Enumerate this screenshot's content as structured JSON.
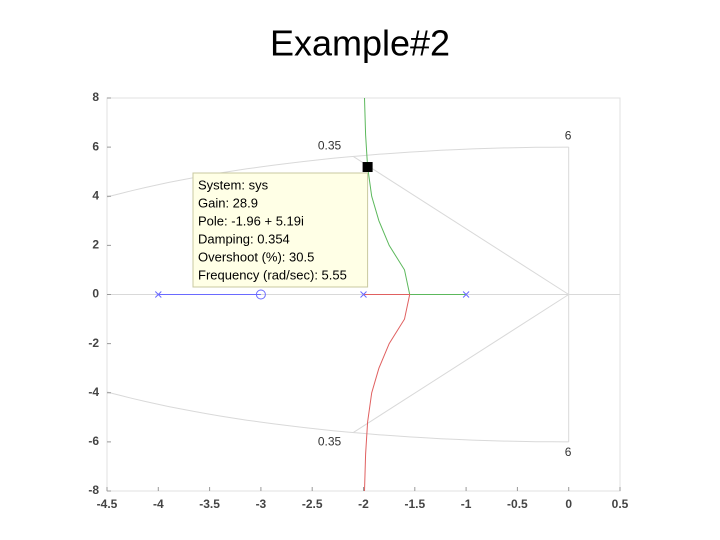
{
  "chart_data": {
    "type": "root-locus",
    "title": "Example#2",
    "xlim": [
      -4.5,
      0.5
    ],
    "ylim": [
      -8,
      8
    ],
    "xticks": [
      -4.5,
      -4,
      -3.5,
      -3,
      -2.5,
      -2,
      -1.5,
      -1,
      -0.5,
      0,
      0.5
    ],
    "yticks": [
      -8,
      -6,
      -4,
      -2,
      0,
      2,
      4,
      6,
      8
    ],
    "grid": {
      "damping": [
        0.35
      ],
      "frequency": [
        6
      ],
      "color": "#d9d9d9"
    },
    "poles": {
      "x": [
        -4,
        -2,
        -1
      ],
      "y": [
        0,
        0,
        0
      ],
      "color": "#6a6aff"
    },
    "zeros": {
      "x": [
        -3
      ],
      "y": [
        0
      ],
      "color": "#6a6aff"
    },
    "series": [
      {
        "color": "#6a6aff",
        "x": [
          -4,
          -3
        ],
        "y": [
          0,
          0
        ]
      },
      {
        "color": "#5cb85c",
        "x": [
          -1,
          -1.55,
          -1.6,
          -1.75,
          -1.85,
          -1.92,
          -1.96,
          -1.98,
          -1.99
        ],
        "y": [
          0,
          0,
          1,
          2,
          3,
          4,
          5.19,
          6.5,
          8
        ]
      },
      {
        "color": "#e06060",
        "x": [
          -2,
          -1.55,
          -1.6,
          -1.75,
          -1.85,
          -1.92,
          -1.96,
          -1.98,
          -1.99
        ],
        "y": [
          0,
          0,
          -1,
          -2,
          -3,
          -4,
          -5.19,
          -6.5,
          -8
        ]
      }
    ],
    "datatip": {
      "x": -1.96,
      "y": 5.19,
      "lines": [
        "System: sys",
        "Gain: 28.9",
        "Pole: -1.96 + 5.19i",
        "Damping: 0.354",
        "Overshoot (%): 30.5",
        "Frequency (rad/sec): 5.55"
      ]
    }
  }
}
